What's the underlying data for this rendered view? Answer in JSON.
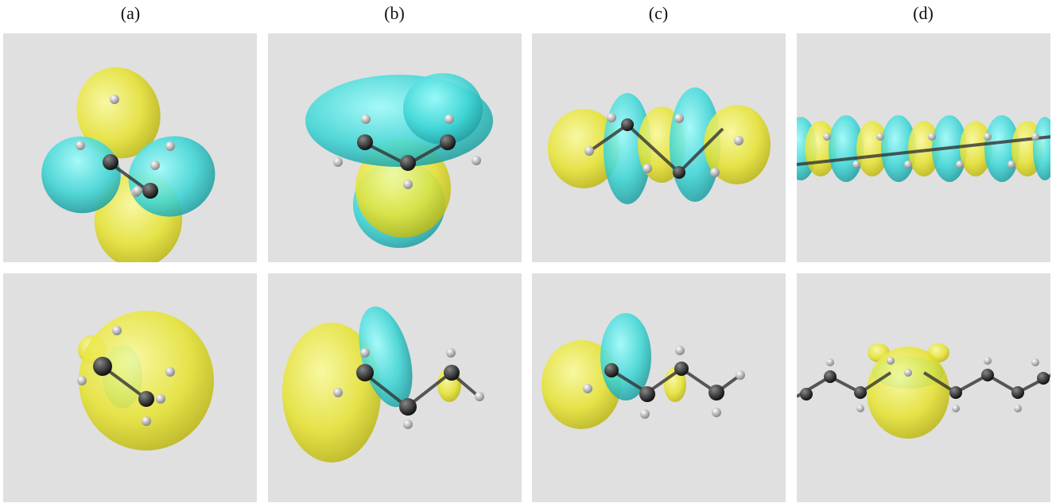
{
  "panel_labels": [
    "(a)",
    "(b)",
    "(c)",
    "(d)"
  ]
}
